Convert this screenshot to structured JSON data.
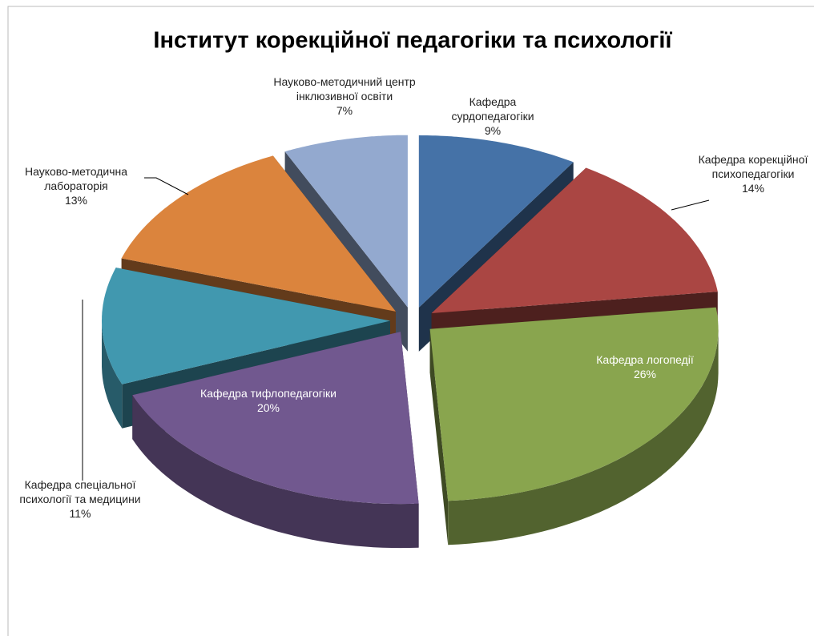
{
  "chart_data": {
    "type": "pie3d",
    "title": "Інститут корекційної педагогіки та психології",
    "categories": [
      "Кафедра сурдопедагогіки",
      "Кафедра корекційної психопедагогіки",
      "Кафедра логопедії",
      "Кафедра тифлопедагогіки",
      "Кафедра спеціальної психології та медицини",
      "Науково-методична лабораторія",
      "Науково-методичний центр інклюзивної освіти"
    ],
    "values": [
      9,
      14,
      26,
      20,
      11,
      13,
      7
    ],
    "value_labels": [
      "9%",
      "14%",
      "26%",
      "20%",
      "11%",
      "13%",
      "7%"
    ],
    "colors": [
      "#4572a7",
      "#aa4643",
      "#89a54e",
      "#71588f",
      "#4198af",
      "#db843d",
      "#93a9cf"
    ]
  }
}
